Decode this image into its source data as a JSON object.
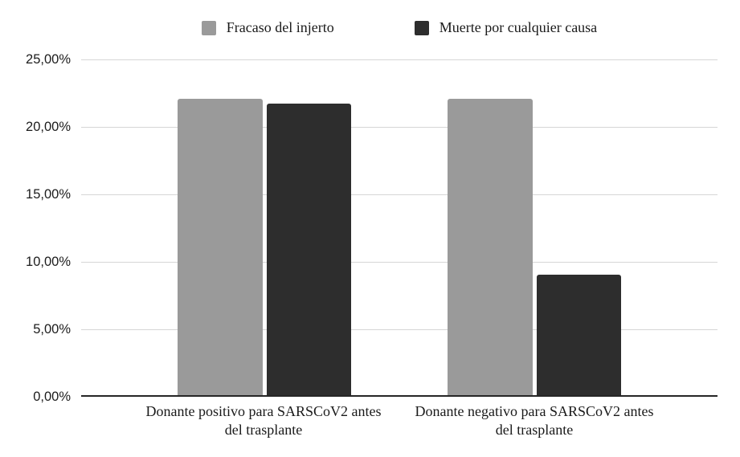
{
  "legend": {
    "items": [
      {
        "label": "Fracaso del injerto",
        "color": "#9a9a9a"
      },
      {
        "label": "Muerte por cualquier causa",
        "color": "#2d2d2d"
      }
    ]
  },
  "y_axis": {
    "tick_labels": [
      "25,00%",
      "20,00%",
      "15,00%",
      "10,00%",
      "5,00%",
      "0,00%"
    ]
  },
  "x_axis": {
    "category_labels": [
      "Donante positivo para SARSCoV2 antes del trasplante",
      "Donante negativo para SARSCoV2 antes del trasplante"
    ]
  },
  "chart_data": {
    "type": "bar",
    "title": "",
    "xlabel": "",
    "ylabel": "",
    "categories": [
      "Donante positivo para SARSCoV2 antes del trasplante",
      "Donante negativo para SARSCoV2 antes del trasplante"
    ],
    "series": [
      {
        "name": "Fracaso del injerto",
        "color": "#9a9a9a",
        "values": [
          22.1,
          22.1
        ]
      },
      {
        "name": "Muerte por cualquier causa",
        "color": "#2d2d2d",
        "values": [
          21.7,
          9.0
        ]
      }
    ],
    "value_unit": "percent",
    "decimal_separator": ",",
    "ylim": [
      0,
      25
    ],
    "ytick_step": 5,
    "grid": true,
    "legend_position": "top"
  },
  "colors": {
    "background": "#ffffff",
    "gridline": "#d6d6d6",
    "axis_line": "#262626",
    "text": "#1a1a1a"
  }
}
